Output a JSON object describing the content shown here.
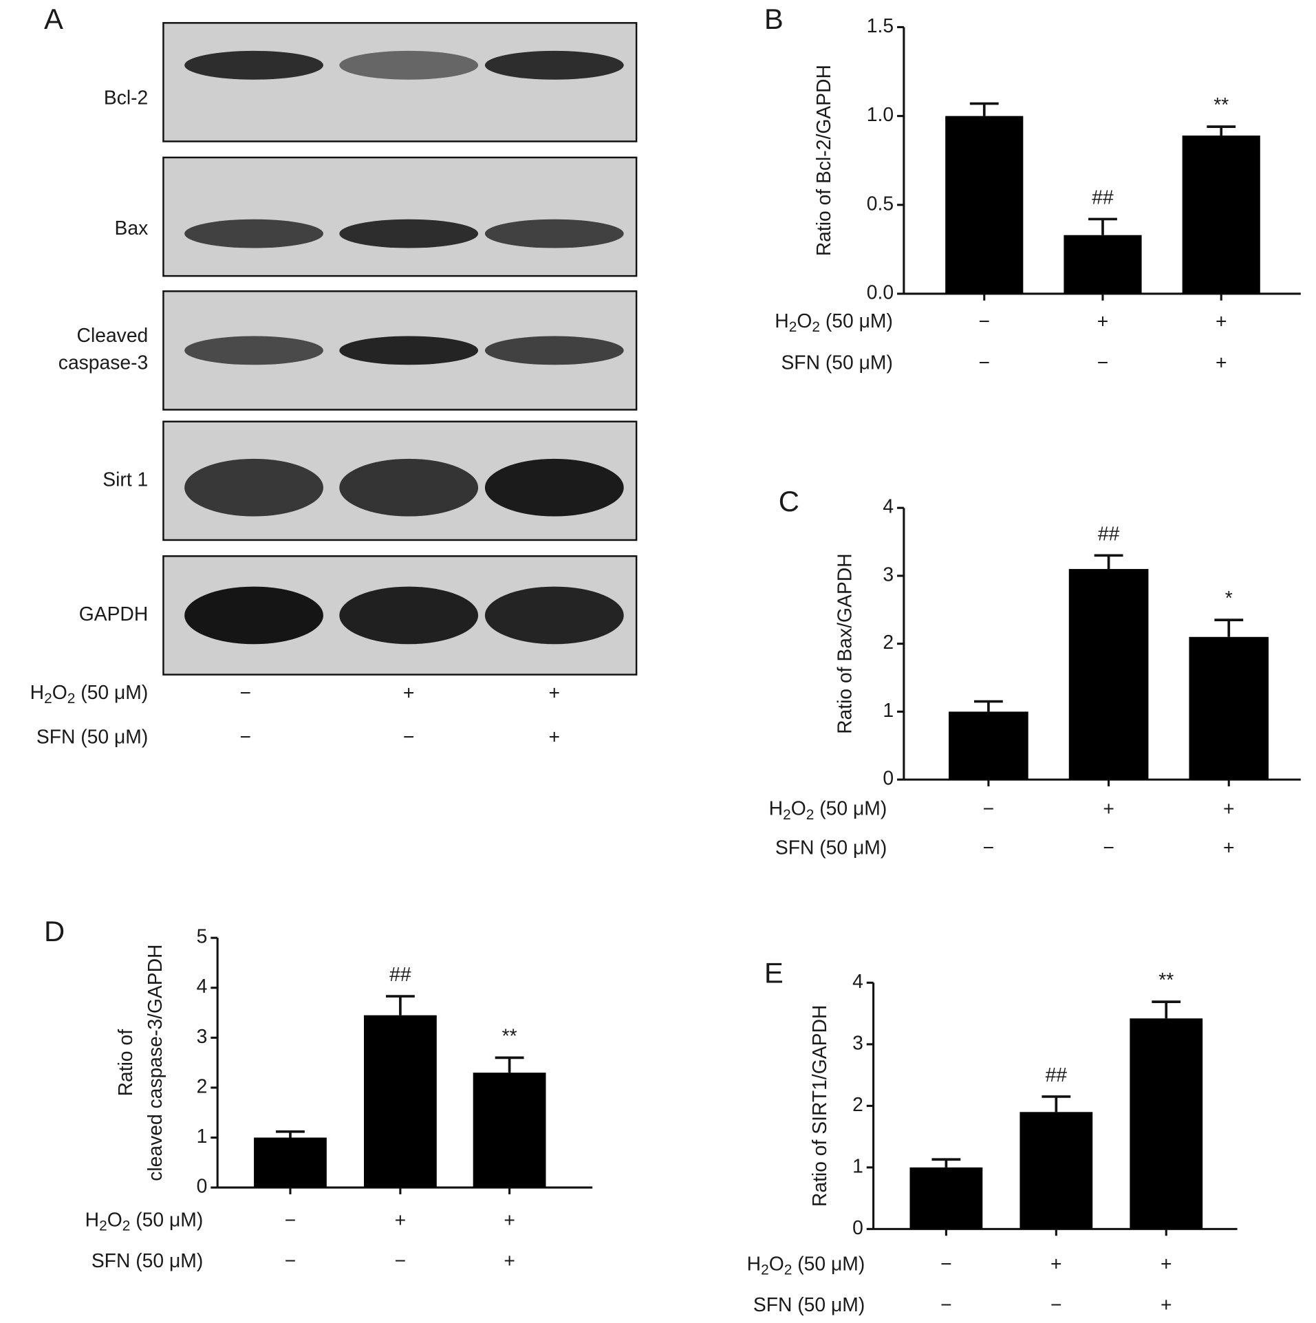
{
  "blot": {
    "panel_label": "A",
    "rows": [
      [
        "Bcl-2"
      ],
      [
        "Bax"
      ],
      [
        "Cleaved",
        "caspase-3"
      ],
      [
        "Sirt 1"
      ],
      [
        "GAPDH"
      ]
    ],
    "treatments": [
      {
        "name": "H2O2 (50 μM)",
        "signs": [
          "−",
          "+",
          "+"
        ]
      },
      {
        "name": "SFN (50 μM)",
        "signs": [
          "−",
          "−",
          "+"
        ]
      }
    ]
  },
  "chart_data": [
    {
      "type": "bar",
      "panel_label": "B",
      "y_label": [
        "Ratio of Bcl-2/GAPDH"
      ],
      "color": "#000000",
      "values": [
        1.0,
        0.33,
        0.89
      ],
      "errors": [
        0.07,
        0.09,
        0.05
      ],
      "annotations": [
        null,
        "##",
        "**"
      ],
      "ylim": [
        0,
        1.5
      ],
      "yticks": [
        {
          "value": 0,
          "label": "0.0"
        },
        {
          "value": 0.5,
          "label": "0.5"
        },
        {
          "value": 1,
          "label": "1.0"
        },
        1.5
      ],
      "treatments": [
        {
          "name": "H2O2 (50 μM)",
          "signs": [
            "−",
            "+",
            "+"
          ]
        },
        {
          "name": "SFN (50 μM)",
          "signs": [
            "−",
            "−",
            "+"
          ]
        }
      ]
    },
    {
      "type": "bar",
      "panel_label": "C",
      "y_label": [
        "Ratio of Bax/GAPDH"
      ],
      "color": "#000000",
      "values": [
        1.0,
        3.1,
        2.1
      ],
      "errors": [
        0.15,
        0.2,
        0.25
      ],
      "annotations": [
        null,
        "##",
        "*"
      ],
      "ylim": [
        0,
        4
      ],
      "yticks": [
        0,
        1,
        2,
        3,
        4
      ],
      "treatments": [
        {
          "name": "H2O2 (50 μM)",
          "signs": [
            "−",
            "+",
            "+"
          ]
        },
        {
          "name": "SFN (50 μM)",
          "signs": [
            "−",
            "−",
            "+"
          ]
        }
      ]
    },
    {
      "type": "bar",
      "panel_label": "D",
      "y_label": [
        "Ratio of",
        "cleaved caspase-3/GAPDH"
      ],
      "color": "#000000",
      "values": [
        1.0,
        3.45,
        2.3
      ],
      "errors": [
        0.12,
        0.38,
        0.3
      ],
      "annotations": [
        null,
        "##",
        "**"
      ],
      "ylim": [
        0,
        5
      ],
      "yticks": [
        0,
        1,
        2,
        3,
        4,
        5
      ],
      "treatments": [
        {
          "name": "H2O2 (50 μM)",
          "signs": [
            "−",
            "+",
            "+"
          ]
        },
        {
          "name": "SFN (50 μM)",
          "signs": [
            "−",
            "−",
            "+"
          ]
        }
      ]
    },
    {
      "type": "bar",
      "panel_label": "E",
      "y_label": [
        "Ratio of SIRT1/GAPDH"
      ],
      "color": "#000000",
      "values": [
        1.0,
        1.9,
        3.42
      ],
      "errors": [
        0.13,
        0.25,
        0.27
      ],
      "annotations": [
        null,
        "##",
        "**"
      ],
      "ylim": [
        0,
        4
      ],
      "yticks": [
        0,
        1,
        2,
        3,
        4
      ],
      "treatments": [
        {
          "name": "H2O2 (50 μM)",
          "signs": [
            "−",
            "+",
            "+"
          ]
        },
        {
          "name": "SFN (50 μM)",
          "signs": [
            "−",
            "−",
            "+"
          ]
        }
      ]
    }
  ]
}
